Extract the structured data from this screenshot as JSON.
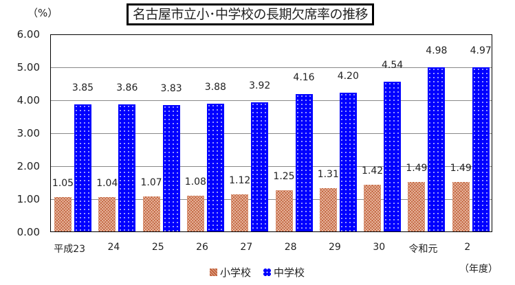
{
  "header": {
    "title": "名古屋市立小･中学校の長期欠席率の推移",
    "unit_label": "（%）",
    "x_unit_label": "（年度）"
  },
  "legend": {
    "items": [
      {
        "label": "小学校",
        "color": "#c0603a"
      },
      {
        "label": "中学校",
        "color": "#0000ff"
      }
    ]
  },
  "y_ticks": [
    "6.00",
    "5.00",
    "4.00",
    "3.00",
    "2.00",
    "1.00",
    "0.00"
  ],
  "chart_data": {
    "type": "bar",
    "title": "名古屋市立小･中学校の長期欠席率の推移",
    "xlabel": "（年度）",
    "ylabel": "（%）",
    "ylim": [
      0,
      6
    ],
    "y_ticks": [
      0,
      1,
      2,
      3,
      4,
      5,
      6
    ],
    "grid": true,
    "legend_position": "bottom",
    "categories": [
      "平成23",
      "24",
      "25",
      "26",
      "27",
      "28",
      "29",
      "30",
      "令和元",
      "2"
    ],
    "series": [
      {
        "name": "小学校",
        "color": "#c0603a",
        "values": [
          1.05,
          1.04,
          1.07,
          1.08,
          1.12,
          1.25,
          1.31,
          1.42,
          1.49,
          1.49
        ]
      },
      {
        "name": "中学校",
        "color": "#0000ff",
        "values": [
          3.85,
          3.86,
          3.83,
          3.88,
          3.92,
          4.16,
          4.2,
          4.54,
          4.98,
          4.97
        ]
      }
    ],
    "value_labels": {
      "小学校": [
        "1.05",
        "1.04",
        "1.07",
        "1.08",
        "1.12",
        "1.25",
        "1.31",
        "1.42",
        "1.49",
        "1.49"
      ],
      "中学校": [
        "3.85",
        "3.86",
        "3.83",
        "3.88",
        "3.92",
        "4.16",
        "4.20",
        "4.54",
        "4.98",
        "4.97"
      ]
    }
  }
}
